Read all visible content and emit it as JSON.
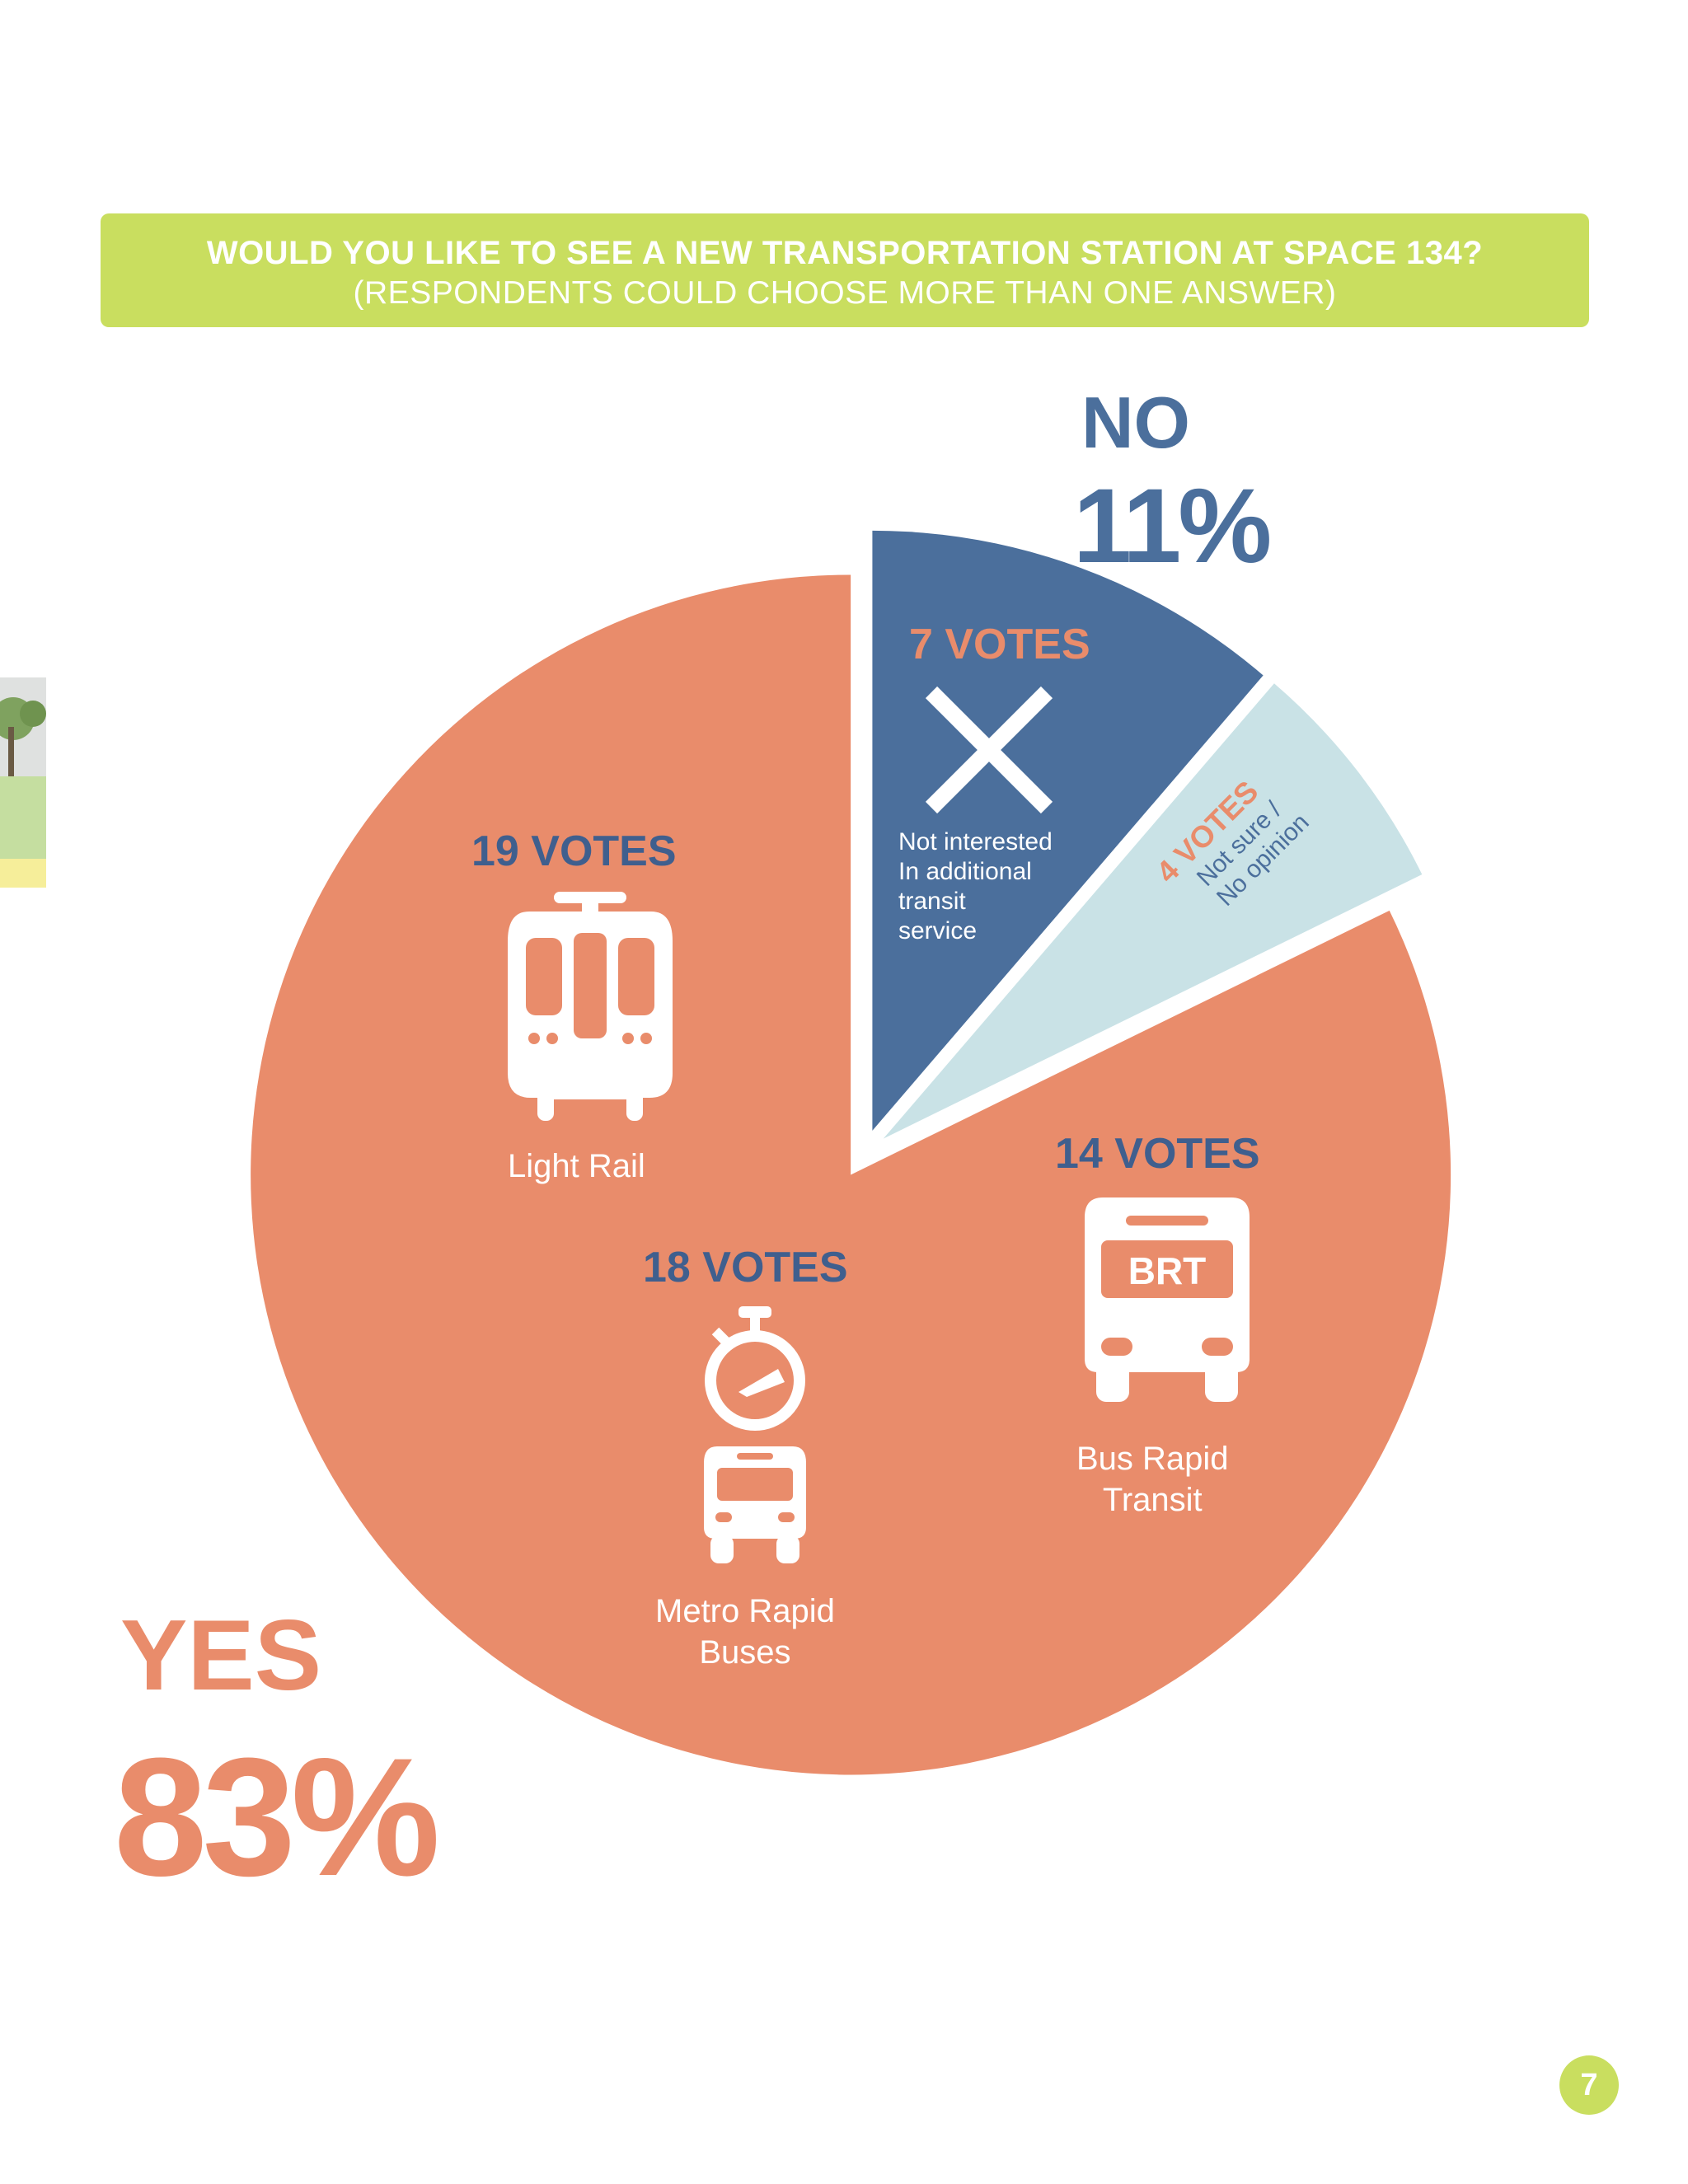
{
  "banner": {
    "question": "WOULD YOU LIKE TO SEE A NEW TRANSPORTATION STATION AT SPACE 134?",
    "subtitle": "(RESPONDENTS COULD CHOOSE MORE THAN ONE ANSWER)"
  },
  "summary": {
    "no_label": "NO",
    "no_percent": "11%",
    "yes_label": "YES",
    "yes_percent": "83%"
  },
  "chart_data": {
    "type": "pie",
    "title": "WOULD YOU LIKE TO SEE A NEW TRANSPORTATION STATION AT SPACE 134?",
    "subtitle": "(RESPONDENTS COULD CHOOSE MORE THAN ONE ANSWER)",
    "slices": [
      {
        "group": "NO",
        "votes": 7,
        "votes_label": "7 VOTES",
        "label": "Not interested In additional transit service",
        "color": "#4b6f9c"
      },
      {
        "group": "Not sure",
        "votes": 4,
        "votes_label": "4 VOTES",
        "label": "Not sure / No opinion",
        "color": "#c9e2e6"
      },
      {
        "group": "YES",
        "votes": 51,
        "votes_label": "",
        "label": "YES",
        "color": "#e98c6b"
      }
    ],
    "yes_breakdown": [
      {
        "label": "Light Rail",
        "votes": 19,
        "votes_label": "19 VOTES",
        "icon": "light-rail-icon"
      },
      {
        "label": "Metro Rapid Buses",
        "votes": 18,
        "votes_label": "18 VOTES",
        "icon": "metro-rapid-bus-icon"
      },
      {
        "label": "Bus Rapid Transit",
        "votes": 14,
        "votes_label": "14 VOTES",
        "icon": "brt-bus-icon"
      }
    ],
    "percentages": {
      "yes": "83%",
      "no": "11%"
    }
  },
  "labels": {
    "no_caption": [
      "Not interested",
      "In additional",
      "transit",
      "service"
    ],
    "not_sure_caption": [
      "Not sure /",
      "No opinion"
    ],
    "light_rail": "Light Rail",
    "metro_rapid": [
      "Metro Rapid",
      "Buses"
    ],
    "brt": [
      "Bus Rapid",
      "Transit"
    ],
    "brt_badge": "BRT"
  },
  "page_number": "7",
  "colors": {
    "accent_green": "#c9de5f",
    "yes": "#e98c6b",
    "no": "#4b6f9c",
    "not_sure": "#c9e2e6"
  }
}
